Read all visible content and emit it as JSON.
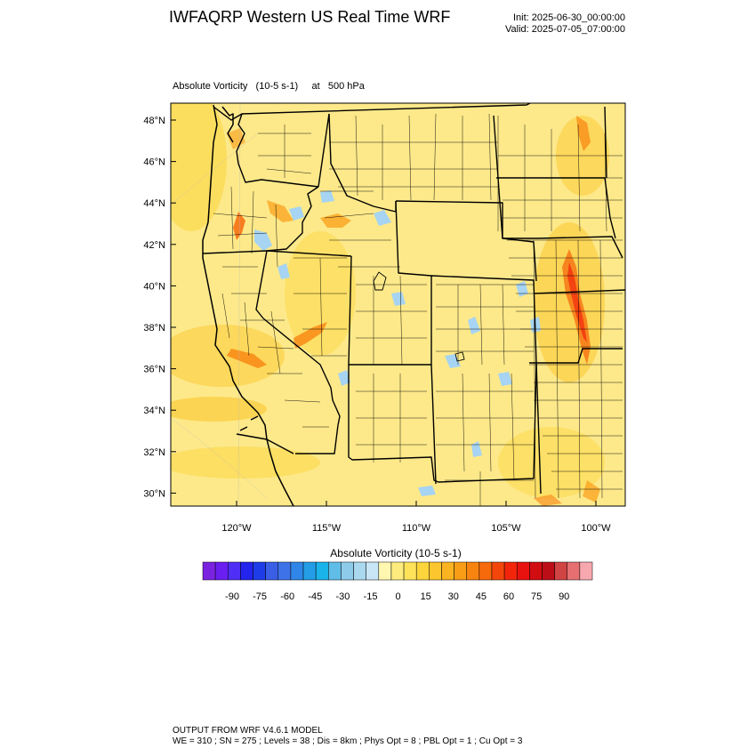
{
  "header": {
    "title": "IWFAQRP Western US Real Time WRF",
    "init": "Init: 2025-06-30_00:00:00",
    "valid": "Valid: 2025-07-05_07:00:00"
  },
  "field_label": "Absolute Vorticity   (10-5 s-1)     at   500 hPa",
  "map": {
    "lat_labels": [
      "48°N",
      "46°N",
      "44°N",
      "42°N",
      "40°N",
      "38°N",
      "36°N",
      "34°N",
      "32°N",
      "30°N"
    ],
    "lon_labels": [
      "120°W",
      "115°W",
      "110°W",
      "105°W",
      "100°W"
    ],
    "background_color": "#fde98a",
    "boundary_color": "#000000",
    "negative_color": "#a6d4f2",
    "positive_color": "#f08a1f"
  },
  "colorbar": {
    "title": "Absolute Vorticity  (10-5 s-1)",
    "tick_labels": [
      "-90",
      "-75",
      "-60",
      "-45",
      "-30",
      "-15",
      "0",
      "15",
      "30",
      "45",
      "60",
      "75",
      "90"
    ],
    "colors": [
      "#7b22e0",
      "#6a1ef0",
      "#4f2ff5",
      "#2424ee",
      "#1e3de8",
      "#3a5fe6",
      "#3d72e8",
      "#2f86e8",
      "#239ee6",
      "#1ab3ea",
      "#5fbde8",
      "#8ecbea",
      "#aad8ef",
      "#c8e6f5",
      "#fff7b0",
      "#fdec7d",
      "#fde25a",
      "#fcd53c",
      "#fcc72e",
      "#fbb321",
      "#f99d17",
      "#f88410",
      "#f66a0c",
      "#f4460b",
      "#f2250b",
      "#e9120e",
      "#d10d12",
      "#bb0e17",
      "#d04444",
      "#e66f72",
      "#f7a8ae"
    ]
  },
  "footer": {
    "line1": "OUTPUT FROM WRF V4.6.1 MODEL",
    "line2": "WE = 310 ; SN = 275 ; Levels = 38 ; Dis = 8km ; Phys Opt = 8 ; PBL Opt = 1 ; Cu Opt = 3"
  }
}
